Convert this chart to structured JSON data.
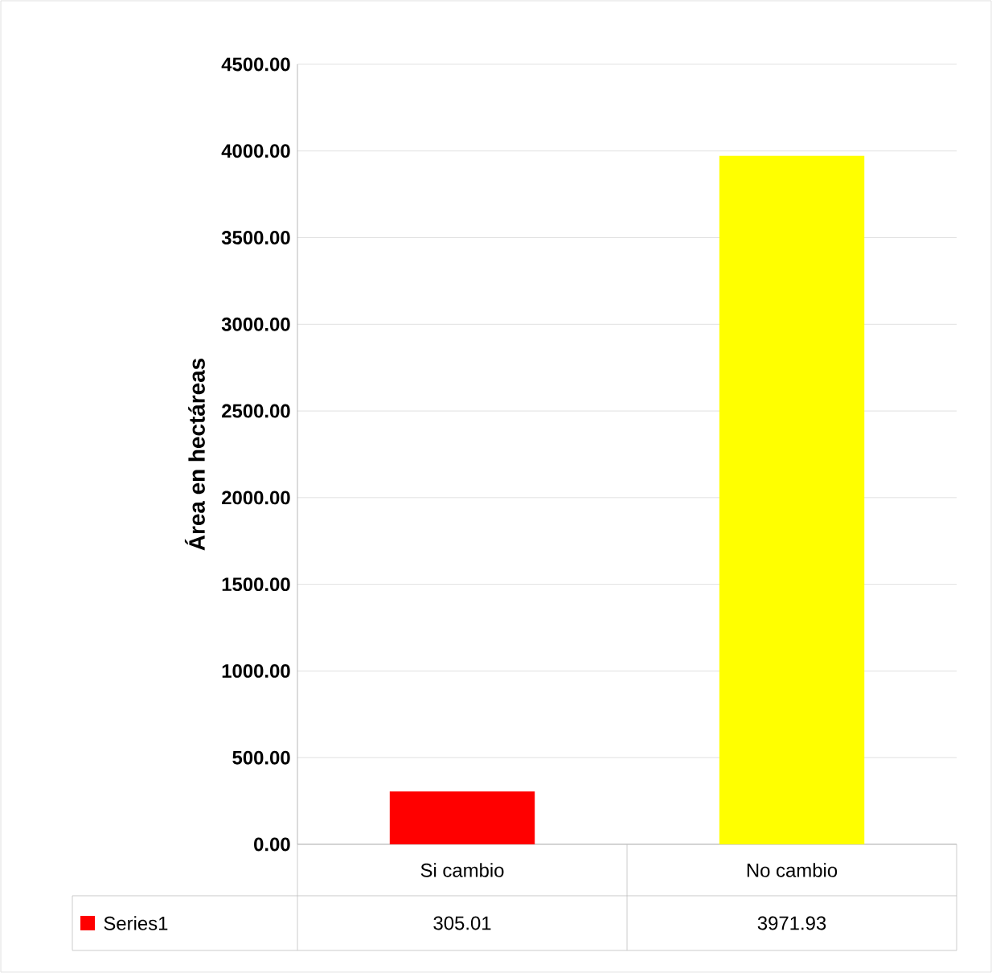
{
  "chart_data": {
    "type": "bar",
    "ylabel": "Área en hectáreas",
    "categories": [
      "Si cambio",
      "No cambio"
    ],
    "series": [
      {
        "name": "Series1",
        "color": "#ff0000",
        "colors": [
          "#ff0000",
          "#ffff00"
        ],
        "values": [
          305.01,
          3971.93
        ]
      }
    ],
    "ylim": [
      0,
      4500
    ],
    "yticks": [
      {
        "value": 0,
        "label": "0.00"
      },
      {
        "value": 500,
        "label": "500.00"
      },
      {
        "value": 1000,
        "label": "1000.00"
      },
      {
        "value": 1500,
        "label": "1500.00"
      },
      {
        "value": 2000,
        "label": "2000.00"
      },
      {
        "value": 2500,
        "label": "2500.00"
      },
      {
        "value": 3000,
        "label": "3000.00"
      },
      {
        "value": 3500,
        "label": "3500.00"
      },
      {
        "value": 4000,
        "label": "4000.00"
      },
      {
        "value": 4500,
        "label": "4500.00"
      }
    ],
    "grid": "y",
    "data_labels": true
  }
}
